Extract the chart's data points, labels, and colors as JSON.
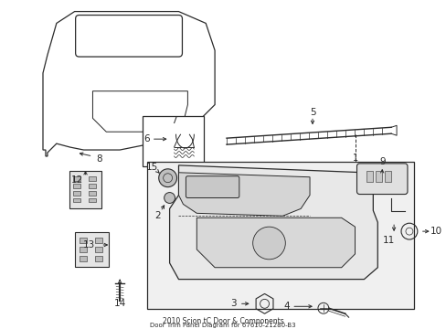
{
  "bg_color": "#ffffff",
  "line_color": "#2a2a2a",
  "fig_width": 4.89,
  "fig_height": 3.6,
  "dpi": 100,
  "title_line1": "2010 Scion tC Door & Components",
  "title_line2": "Door Trim Panel Diagram for 67610-21280-B3"
}
